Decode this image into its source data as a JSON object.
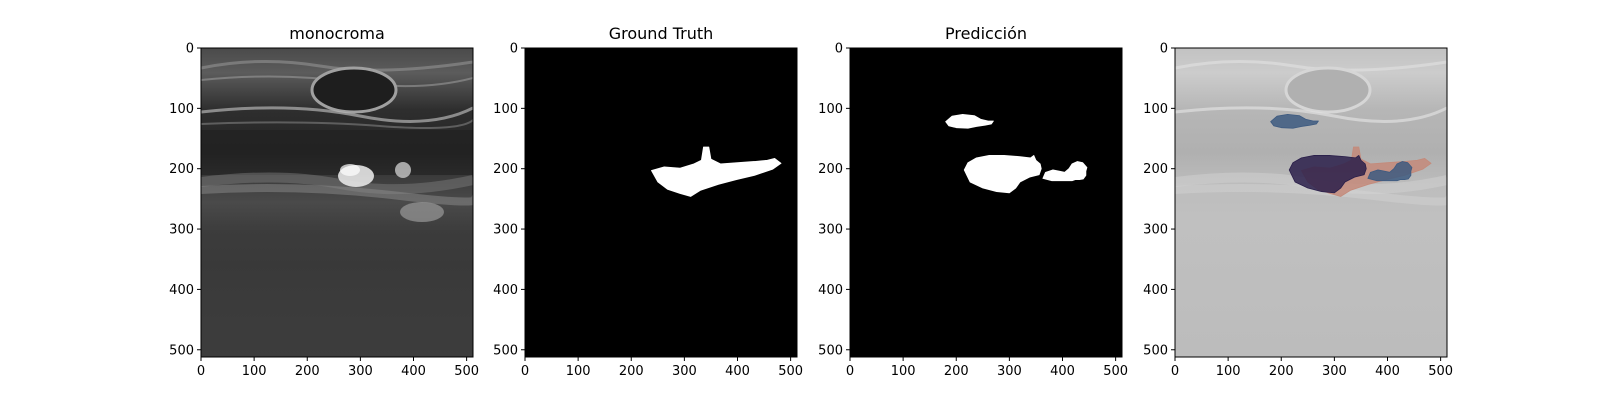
{
  "figure": {
    "panels": [
      {
        "title": "monocroma",
        "kind": "ultrasound"
      },
      {
        "title": "Ground Truth",
        "kind": "mask-gt"
      },
      {
        "title": "Predicción",
        "kind": "mask-pred"
      },
      {
        "title": "",
        "kind": "overlay"
      }
    ]
  },
  "chart_data": {
    "type": "heatmap",
    "image_size": [
      512,
      512
    ],
    "xlim": [
      0,
      512
    ],
    "ylim": [
      512,
      0
    ],
    "x_ticks": [
      0,
      100,
      200,
      300,
      400,
      500
    ],
    "y_ticks": [
      0,
      100,
      200,
      300,
      400,
      500
    ],
    "x_tick_labels": [
      "0",
      "100",
      "200",
      "300",
      "400",
      "500"
    ],
    "y_tick_labels": [
      "0",
      "100",
      "200",
      "300",
      "400",
      "500"
    ],
    "colors": {
      "mask_background": "#000000",
      "mask_foreground": "#ffffff",
      "overlay_gt": "#c48a7a",
      "overlay_pred": "#3d5a80",
      "overlay_both": "#2a1f4a"
    },
    "regions": {
      "ground_truth": [
        {
          "points": [
            [
              238,
              203
            ],
            [
              262,
              197
            ],
            [
              292,
              199
            ],
            [
              318,
              192
            ],
            [
              332,
              186
            ],
            [
              336,
              164
            ],
            [
              346,
              164
            ],
            [
              350,
              184
            ],
            [
              368,
              192
            ],
            [
              400,
              190
            ],
            [
              432,
              188
            ],
            [
              456,
              186
            ],
            [
              470,
              183
            ],
            [
              482,
              191
            ],
            [
              466,
              201
            ],
            [
              432,
              211
            ],
            [
              398,
              218
            ],
            [
              364,
              226
            ],
            [
              330,
              236
            ],
            [
              312,
              246
            ],
            [
              292,
              241
            ],
            [
              268,
              234
            ],
            [
              250,
              222
            ]
          ]
        }
      ],
      "prediction": [
        {
          "points": [
            [
              180,
              122
            ],
            [
              192,
              113
            ],
            [
              212,
              110
            ],
            [
              234,
              112
            ],
            [
              246,
              118
            ],
            [
              260,
              121
            ],
            [
              270,
              121
            ],
            [
              266,
              126
            ],
            [
              254,
              128
            ],
            [
              238,
              130
            ],
            [
              222,
              133
            ],
            [
              200,
              132
            ],
            [
              186,
              129
            ]
          ]
        },
        {
          "points": [
            [
              215,
              202
            ],
            [
              222,
              190
            ],
            [
              238,
              182
            ],
            [
              262,
              178
            ],
            [
              290,
              178
            ],
            [
              320,
              180
            ],
            [
              340,
              182
            ],
            [
              346,
              178
            ],
            [
              350,
              186
            ],
            [
              358,
              192
            ],
            [
              360,
              200
            ],
            [
              356,
              210
            ],
            [
              338,
              214
            ],
            [
              320,
              222
            ],
            [
              312,
              232
            ],
            [
              300,
              240
            ],
            [
              276,
              238
            ],
            [
              250,
              232
            ],
            [
              226,
              222
            ]
          ]
        },
        {
          "points": [
            [
              363,
              216
            ],
            [
              368,
              206
            ],
            [
              382,
              202
            ],
            [
              394,
              204
            ],
            [
              404,
              206
            ],
            [
              412,
              200
            ],
            [
              418,
              192
            ],
            [
              428,
              188
            ],
            [
              438,
              190
            ],
            [
              446,
              198
            ],
            [
              444,
              204
            ],
            [
              444,
              211
            ],
            [
              439,
              217
            ],
            [
              432,
              218
            ],
            [
              424,
              218
            ],
            [
              418,
              220
            ],
            [
              400,
              220
            ],
            [
              380,
              220
            ]
          ]
        }
      ]
    }
  }
}
